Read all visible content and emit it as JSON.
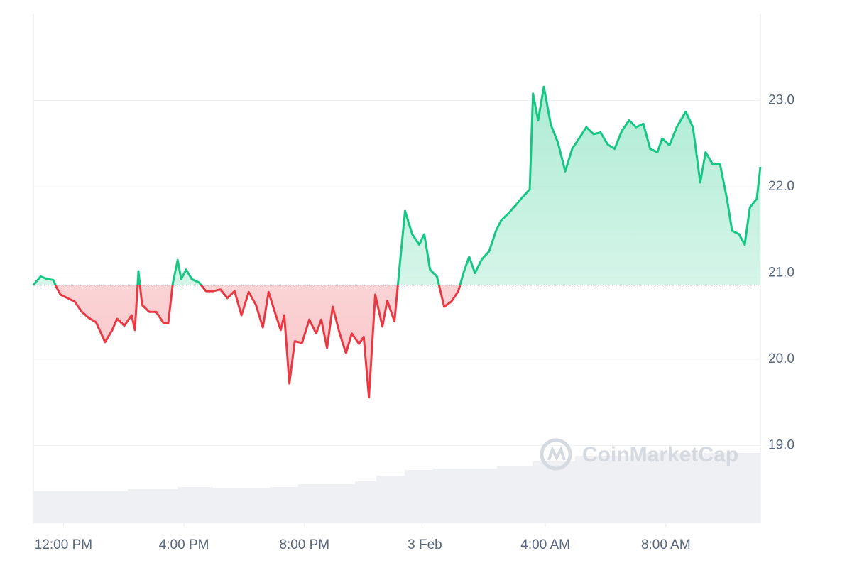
{
  "chart_data": {
    "type": "line",
    "watermark": "CoinMarketCap",
    "color_up": "#16c784",
    "color_down": "#ea3943",
    "grid": true,
    "xlim": [
      11,
      35.14
    ],
    "xticks": [
      {
        "value": 12,
        "label": "12:00 PM"
      },
      {
        "value": 16,
        "label": "4:00 PM"
      },
      {
        "value": 20,
        "label": "8:00 PM"
      },
      {
        "value": 24,
        "label": "3 Feb"
      },
      {
        "value": 28,
        "label": "4:00 AM"
      },
      {
        "value": 32,
        "label": "8:00 AM"
      }
    ],
    "ylim": [
      18.1,
      24.0
    ],
    "yticks": [
      {
        "value": 19,
        "label": "19.0"
      },
      {
        "value": 20,
        "label": "20.0"
      },
      {
        "value": 21,
        "label": "21.0"
      },
      {
        "value": 22,
        "label": "22.0"
      },
      {
        "value": 23,
        "label": "23.0"
      }
    ],
    "x": [
      11.0,
      11.24,
      11.47,
      11.66,
      11.76,
      11.9,
      12.13,
      12.37,
      12.61,
      12.84,
      13.08,
      13.38,
      13.62,
      13.78,
      14.02,
      14.26,
      14.37,
      14.49,
      14.61,
      14.85,
      15.08,
      15.32,
      15.48,
      15.63,
      15.79,
      15.91,
      16.07,
      16.26,
      16.5,
      16.73,
      16.97,
      17.21,
      17.44,
      17.68,
      17.91,
      18.15,
      18.39,
      18.62,
      18.81,
      18.98,
      19.21,
      19.33,
      19.5,
      19.68,
      19.92,
      20.16,
      20.39,
      20.56,
      20.75,
      20.94,
      21.17,
      21.38,
      21.57,
      21.81,
      21.97,
      22.14,
      22.35,
      22.59,
      22.75,
      22.99,
      23.15,
      23.34,
      23.58,
      23.81,
      23.98,
      24.17,
      24.4,
      24.64,
      24.88,
      25.11,
      25.28,
      25.47,
      25.66,
      25.89,
      26.13,
      26.36,
      26.53,
      26.77,
      27.0,
      27.24,
      27.48,
      27.59,
      27.76,
      27.95,
      28.18,
      28.42,
      28.66,
      28.89,
      29.12,
      29.36,
      29.6,
      29.83,
      30.07,
      30.3,
      30.54,
      30.78,
      31.01,
      31.25,
      31.48,
      31.72,
      31.88,
      32.12,
      32.36,
      32.66,
      32.9,
      33.14,
      33.32,
      33.56,
      33.8,
      34.03,
      34.2,
      34.43,
      34.62,
      34.79,
      35.02,
      35.14
    ],
    "values": [
      20.86,
      20.96,
      20.93,
      20.92,
      20.84,
      20.75,
      20.71,
      20.67,
      20.55,
      20.48,
      20.43,
      20.2,
      20.34,
      20.47,
      20.39,
      20.51,
      20.34,
      21.02,
      20.63,
      20.55,
      20.55,
      20.42,
      20.42,
      20.88,
      21.15,
      20.93,
      21.04,
      20.93,
      20.89,
      20.79,
      20.79,
      20.81,
      20.71,
      20.79,
      20.51,
      20.78,
      20.63,
      20.37,
      20.78,
      20.59,
      20.34,
      20.51,
      19.72,
      20.21,
      20.19,
      20.46,
      20.3,
      20.46,
      20.13,
      20.61,
      20.3,
      20.07,
      20.3,
      20.18,
      20.26,
      19.56,
      20.75,
      20.38,
      20.68,
      20.44,
      21.04,
      21.72,
      21.45,
      21.33,
      21.45,
      21.04,
      20.96,
      20.61,
      20.67,
      20.79,
      21.0,
      21.19,
      21.0,
      21.16,
      21.25,
      21.49,
      21.61,
      21.69,
      21.78,
      21.88,
      21.97,
      23.08,
      22.77,
      23.16,
      22.72,
      22.51,
      22.18,
      22.44,
      22.56,
      22.69,
      22.61,
      22.63,
      22.49,
      22.44,
      22.65,
      22.77,
      22.69,
      22.73,
      22.44,
      22.4,
      22.56,
      22.48,
      22.69,
      22.87,
      22.69,
      22.05,
      22.4,
      22.26,
      22.26,
      21.86,
      21.49,
      21.45,
      21.33,
      21.76,
      21.86,
      22.23
    ]
  }
}
